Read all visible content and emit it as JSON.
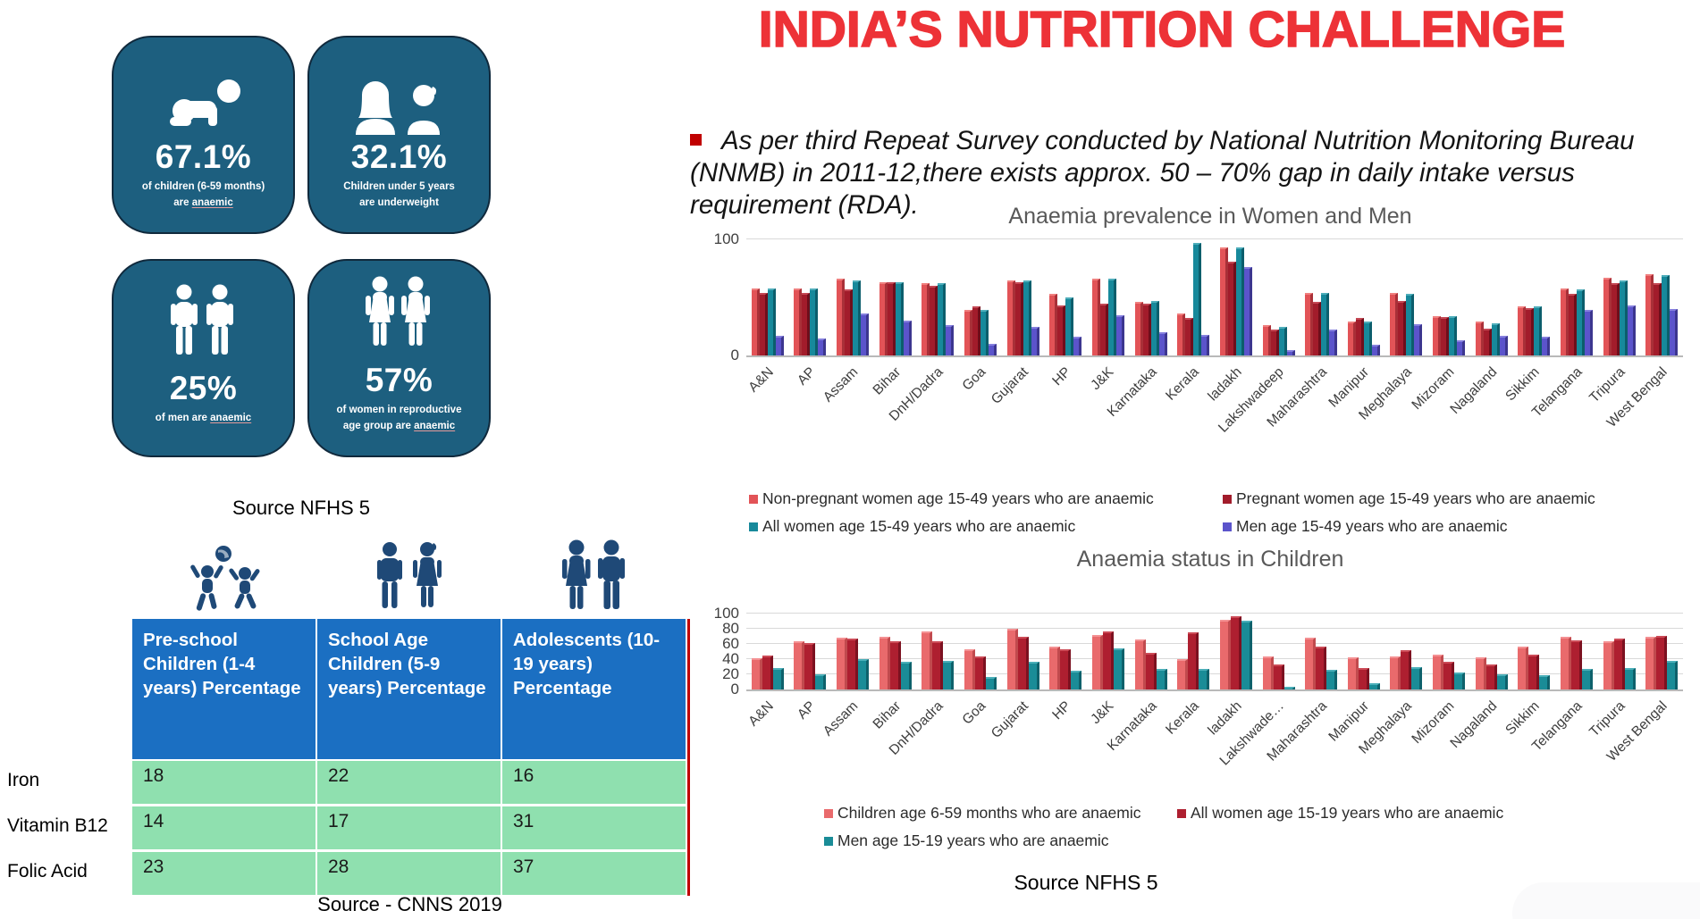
{
  "slide": {
    "title": "INDIA’S NUTRITION CHALLENGE",
    "title_color": "#ED3237",
    "bullet_text": "As per third Repeat Survey conducted by National Nutrition Monitoring Bureau (NNMB) in 2011-12,there exists approx. 50 – 70% gap in daily intake versus requirement (RDA)."
  },
  "colors": {
    "card_bg": "#1D5F7F",
    "card_border": "#10293C",
    "table_header_bg": "#1B6FC2",
    "table_cell_bg": "#8FE0AF",
    "table_edge_red": "#C00000",
    "icon_navy": "#1F4977"
  },
  "stat_cards": [
    {
      "icon": "baby-crawling-icon",
      "value": "67.1%",
      "line1": "of children (6-59 months)",
      "line2_pre": "are ",
      "line2_underlined": "anaemic"
    },
    {
      "icon": "woman-and-boy-icon",
      "value": "32.1%",
      "line1": "Children under 5 years",
      "line2_pre": "are underweight",
      "line2_underlined": ""
    },
    {
      "icon": "two-men-icon",
      "value": "25%",
      "line1": "",
      "line2_pre": "of men are ",
      "line2_underlined": "anaemic"
    },
    {
      "icon": "two-women-icon",
      "value": "57%",
      "line1": "of women in reproductive",
      "line2_pre": "age group are ",
      "line2_underlined": "anaemic"
    }
  ],
  "stat_cards_source": "Source NFHS 5",
  "nutrient_table": {
    "column_headers": [
      "Pre-school Children (1-4 years) Percentage",
      "School Age Children (5-9 years) Percentage",
      "Adolescents (10-19 years) Percentage"
    ],
    "rows": [
      {
        "label": "Iron",
        "values": [
          18,
          22,
          16
        ]
      },
      {
        "label": "Vitamin B12",
        "values": [
          14,
          17,
          31
        ]
      },
      {
        "label": "Folic Acid",
        "values": [
          23,
          28,
          37
        ]
      }
    ],
    "source": "Source - CNNS 2019"
  },
  "charts_source": "Source NFHS 5",
  "chart_data": [
    {
      "type": "bar",
      "title": "Anaemia prevalence in Women and Men",
      "ylim": [
        0,
        100
      ],
      "yticks": [
        0,
        100
      ],
      "gridlines": [
        100
      ],
      "legend_position": "bottom",
      "categories": [
        "A&N",
        "AP",
        "Assam",
        "Bihar",
        "DnH/Dadra",
        "Goa",
        "Gujarat",
        "HP",
        "J&K",
        "Karnataka",
        "Kerala",
        "ladakh",
        "Lakshwadeep",
        "Maharashtra",
        "Manipur",
        "Meghalaya",
        "Mizoram",
        "Nagaland",
        "Sikkim",
        "Telangana",
        "Tripura",
        "West Bengal"
      ],
      "series": [
        {
          "name": "Non-pregnant women age 15-49 years who are anaemic",
          "color": "#E25357",
          "color_light": "#F0807F",
          "color_dark": "#A93038",
          "values": [
            58,
            58,
            66,
            63,
            62,
            39,
            65,
            53,
            66,
            46,
            36,
            93,
            26,
            54,
            29,
            54,
            34,
            29,
            42,
            58,
            67,
            70
          ]
        },
        {
          "name": "Pregnant women age 15-49 years who are anaemic",
          "color": "#A21C2B",
          "color_light": "#C44955",
          "color_dark": "#6E0E1B",
          "values": [
            54,
            54,
            57,
            63,
            60,
            42,
            63,
            43,
            45,
            45,
            32,
            81,
            22,
            46,
            32,
            47,
            33,
            23,
            41,
            53,
            62,
            62
          ]
        },
        {
          "name": "All women age 15-49 years who are anaemic",
          "color": "#17899B",
          "color_light": "#4FAEBB",
          "color_dark": "#0C5E6C",
          "values": [
            58,
            58,
            65,
            63,
            62,
            39,
            65,
            50,
            66,
            47,
            97,
            93,
            25,
            54,
            29,
            53,
            34,
            28,
            42,
            57,
            65,
            69
          ]
        },
        {
          "name": "Men age 15-49 years who are anaemic",
          "color": "#5B54CB",
          "color_light": "#8680DE",
          "color_dark": "#3C368F",
          "values": [
            17,
            15,
            36,
            30,
            26,
            10,
            25,
            16,
            35,
            20,
            18,
            76,
            5,
            22,
            9,
            27,
            13,
            17,
            16,
            39,
            43,
            40
          ]
        }
      ]
    },
    {
      "type": "bar",
      "title": "Anaemia status in Children",
      "ylim": [
        0,
        100
      ],
      "yticks": [
        0,
        20,
        40,
        60,
        80,
        100
      ],
      "gridlines": [
        20,
        40,
        60,
        80,
        100
      ],
      "legend_position": "bottom",
      "categories": [
        "A&N",
        "AP",
        "Assam",
        "Bihar",
        "DnH/Dadra",
        "Goa",
        "Gujarat",
        "HP",
        "J&K",
        "Karnataka",
        "Kerala",
        "ladakh",
        "Lakshwade…",
        "Maharashtra",
        "Manipur",
        "Meghalaya",
        "Mizoram",
        "Nagaland",
        "Sikkim",
        "Telangana",
        "Tripura",
        "West Bengal"
      ],
      "series": [
        {
          "name": "Children age 6-59 months who are anaemic",
          "color": "#E96A6C",
          "color_light": "#F49193",
          "color_dark": "#C14A4E",
          "values": [
            41,
            63,
            68,
            69,
            76,
            53,
            80,
            56,
            72,
            66,
            40,
            92,
            43,
            68,
            42,
            44,
            46,
            42,
            56,
            70,
            64,
            69
          ]
        },
        {
          "name": "All women age 15-19 years who are anaemic",
          "color": "#AE1F30",
          "color_light": "#CC4B57",
          "color_dark": "#7C1120",
          "values": [
            45,
            61,
            67,
            64,
            63,
            44,
            69,
            53,
            76,
            48,
            75,
            96,
            33,
            57,
            28,
            52,
            36,
            33,
            46,
            65,
            67,
            71
          ]
        },
        {
          "name": "Men age 15-19 years who are anaemic",
          "color": "#1A8C97",
          "color_light": "#4BAFB9",
          "color_dark": "#0E616B",
          "values": [
            28,
            20,
            40,
            36,
            38,
            17,
            37,
            25,
            54,
            27,
            27,
            91,
            3,
            26,
            8,
            30,
            22,
            20,
            19,
            27,
            28,
            38
          ]
        }
      ]
    }
  ]
}
